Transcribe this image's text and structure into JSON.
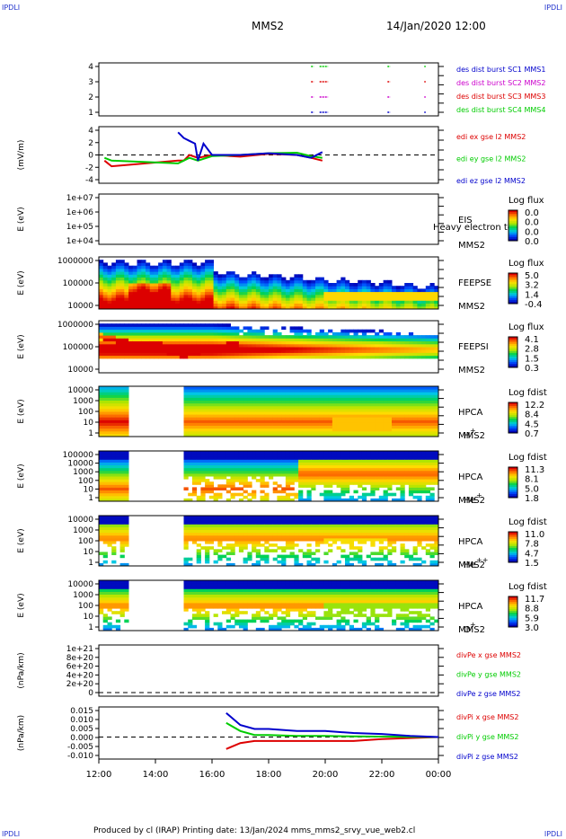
{
  "header": {
    "corner_tl": "IPDLI",
    "corner_tr": "IPDLI",
    "title": "MMS2",
    "date": "14/Jan/2020 12:00"
  },
  "footer": {
    "text": "Produced by cl (IRAP)   Printing date: 13/Jan/2024   mms_mms2_srvy_vue_web2.cl",
    "corner_bl": "IPDLI",
    "corner_br": "IPDLI"
  },
  "time_axis": {
    "ticks": [
      "12:00",
      "14:00",
      "16:00",
      "18:00",
      "20:00",
      "22:00",
      "00:00"
    ],
    "tick_hours": [
      12,
      14,
      16,
      18,
      20,
      22,
      24
    ]
  },
  "colors": {
    "red": "#dd0000",
    "green": "#00cc00",
    "blue": "#0000cc",
    "magenta": "#cc00cc",
    "orange": "#ff8800",
    "yellow": "#ffee00",
    "cyan": "#00ccdd"
  },
  "panels": [
    {
      "id": "burst",
      "type": "scatter",
      "ylabel": "",
      "yticks": [
        "4",
        "3",
        "2",
        "1"
      ],
      "legend": [
        {
          "text": "des dist burst SC1 MMS1",
          "color": "#0000cc"
        },
        {
          "text": "des dist burst SC2 MMS2",
          "color": "#cc00cc"
        },
        {
          "text": "des dist burst SC3 MMS3",
          "color": "#dd0000"
        },
        {
          "text": "des dist burst SC4 MMS4",
          "color": "#00cc00"
        }
      ],
      "series": [
        {
          "level": 4,
          "color": "#00cc00",
          "segments": [
            [
              19.5,
              19.6
            ],
            [
              19.8,
              20.1
            ],
            [
              22.2,
              22.3
            ],
            [
              23.5,
              23.55
            ]
          ]
        },
        {
          "level": 3,
          "color": "#dd0000",
          "segments": [
            [
              19.5,
              19.6
            ],
            [
              19.8,
              20.1
            ],
            [
              22.2,
              22.3
            ],
            [
              23.5,
              23.55
            ]
          ]
        },
        {
          "level": 2,
          "color": "#cc00cc",
          "segments": [
            [
              19.5,
              19.6
            ],
            [
              19.8,
              20.1
            ],
            [
              22.2,
              22.3
            ],
            [
              23.5,
              23.55
            ]
          ]
        },
        {
          "level": 1,
          "color": "#0000cc",
          "segments": [
            [
              19.5,
              19.6
            ],
            [
              19.8,
              20.1
            ],
            [
              22.2,
              22.3
            ],
            [
              23.5,
              23.55
            ]
          ]
        }
      ]
    },
    {
      "id": "edi",
      "type": "line",
      "ylabel": "(mV/m)",
      "yticks": [
        "4",
        "2",
        "0",
        "-2",
        "-4"
      ],
      "legend": [
        {
          "text": "edi ex gse l2 MMS2",
          "color": "#dd0000"
        },
        {
          "text": "edi ey gse l2 MMS2",
          "color": "#00cc00"
        },
        {
          "text": "edi ez gse l2 MMS2",
          "color": "#0000cc"
        }
      ]
    },
    {
      "id": "eis",
      "type": "empty-spectro",
      "ylabel": "E (eV)",
      "yticks": [
        "1e+07",
        "1e+06",
        "1e+05",
        "1e+04"
      ],
      "labels": [
        "EIS",
        "MMS2"
      ],
      "overlay": "Heavy electron to",
      "cbar": {
        "title": "Log flux",
        "ticks": [
          "0.0",
          "0.0",
          "0.0",
          "0.0"
        ]
      }
    },
    {
      "id": "feepse",
      "type": "spectro",
      "ylabel": "E (eV)",
      "yticks": [
        "1000000",
        "100000",
        "10000"
      ],
      "labels": [
        "FEEPSE",
        "MMS2"
      ],
      "cbar": {
        "title": "Log flux",
        "ticks": [
          "5.0",
          "3.2",
          "1.4",
          "-0.4"
        ]
      }
    },
    {
      "id": "feepsi",
      "type": "spectro",
      "ylabel": "E (eV)",
      "yticks": [
        "1000000",
        "100000",
        "10000"
      ],
      "labels": [
        "FEEPSI",
        "MMS2"
      ],
      "cbar": {
        "title": "Log flux",
        "ticks": [
          "4.1",
          "2.8",
          "1.5",
          "0.3"
        ]
      }
    },
    {
      "id": "hpca-h",
      "type": "spectro",
      "ylabel": "E (eV)",
      "yticks": [
        "10000",
        "1000",
        "100",
        "10",
        "1"
      ],
      "labels": [
        "HPCA",
        "MMS2"
      ],
      "species": "H",
      "species_sup": "+",
      "cbar": {
        "title": "Log fdist",
        "ticks": [
          "12.2",
          "8.4",
          "4.5",
          "0.7"
        ]
      }
    },
    {
      "id": "hpca-he",
      "type": "spectro",
      "ylabel": "E (eV)",
      "yticks": [
        "100000",
        "10000",
        "1000",
        "100",
        "10",
        "1"
      ],
      "labels": [
        "HPCA",
        "MMS2"
      ],
      "species": "He",
      "species_sup": "+",
      "cbar": {
        "title": "Log fdist",
        "ticks": [
          "11.3",
          "8.1",
          "5.0",
          "1.8"
        ]
      }
    },
    {
      "id": "hpca-he2",
      "type": "spectro",
      "ylabel": "E (eV)",
      "yticks": [
        "10000",
        "1000",
        "100",
        "10",
        "1"
      ],
      "labels": [
        "HPCA",
        "MMS2"
      ],
      "species": "He",
      "species_sup": "++",
      "cbar": {
        "title": "Log fdist",
        "ticks": [
          "11.0",
          "7.8",
          "4.7",
          "1.5"
        ]
      }
    },
    {
      "id": "hpca-o",
      "type": "spectro",
      "ylabel": "E (eV)",
      "yticks": [
        "10000",
        "1000",
        "100",
        "10",
        "1"
      ],
      "labels": [
        "HPCA",
        "MMS2"
      ],
      "species": "O",
      "species_sup": "+",
      "cbar": {
        "title": "Log fdist",
        "ticks": [
          "11.7",
          "8.8",
          "5.9",
          "3.0"
        ]
      }
    },
    {
      "id": "divpe",
      "type": "empty-line",
      "ylabel": "(nPa/km)",
      "yticks": [
        "1e+21",
        "8e+20",
        "6e+20",
        "4e+20",
        "2e+20",
        "0"
      ],
      "legend": [
        {
          "text": "divPe x gse MMS2",
          "color": "#dd0000"
        },
        {
          "text": "divPe y gse MMS2",
          "color": "#00cc00"
        },
        {
          "text": "divPe z gse MMS2",
          "color": "#0000cc"
        }
      ]
    },
    {
      "id": "divpi",
      "type": "line",
      "ylabel": "(nPa/km)",
      "yticks": [
        "0.015",
        "0.010",
        "0.005",
        "0.000",
        "-0.005",
        "-0.010"
      ],
      "legend": [
        {
          "text": "divPi x gse MMS2",
          "color": "#dd0000"
        },
        {
          "text": "divPi y gse MMS2",
          "color": "#00cc00"
        },
        {
          "text": "divPi z gse MMS2",
          "color": "#0000cc"
        }
      ]
    }
  ],
  "chart_data": {
    "type": "heatmap",
    "x_range_hours": [
      12,
      24
    ],
    "data_gaps_hpca_hours": [
      [
        13.0,
        15.0
      ]
    ],
    "edi": {
      "ylim": [
        -5,
        5
      ],
      "series": [
        {
          "name": "edi ex gse l2 MMS2",
          "x": [
            12.2,
            12.45,
            14.8,
            15.0,
            15.2,
            15.5,
            16.0,
            17.0,
            18.0,
            19.0,
            19.5,
            19.9
          ],
          "y": [
            -1,
            -2,
            -1,
            -1,
            0,
            -0.5,
            0,
            -0.3,
            0.2,
            0,
            -0.5,
            -1
          ]
        },
        {
          "name": "edi ey gse l2 MMS2",
          "x": [
            12.2,
            12.45,
            14.8,
            15.0,
            15.2,
            15.5,
            16.0,
            17.0,
            18.0,
            19.0,
            19.5,
            19.9
          ],
          "y": [
            -0.5,
            -1,
            -1.5,
            -1,
            -0.5,
            -1,
            -0.2,
            0,
            0.3,
            0.4,
            -0.2,
            -0.5
          ]
        },
        {
          "name": "edi ez gse l2 MMS2",
          "x": [
            14.8,
            14.9,
            15.0,
            15.2,
            15.4,
            15.5,
            15.7,
            16.0,
            17.0,
            18.0,
            19.0,
            19.5,
            19.9
          ],
          "y": [
            4,
            3.5,
            3,
            2.5,
            2,
            -1,
            2,
            0,
            0,
            0.3,
            0,
            -0.5,
            0.5
          ]
        }
      ]
    },
    "divpi": {
      "ylim": [
        -0.011,
        0.015
      ],
      "series": [
        {
          "name": "divPi x gse MMS2",
          "x": [
            16.5,
            17,
            17.5,
            18,
            19,
            20,
            21,
            22,
            23,
            24
          ],
          "y": [
            -0.006,
            -0.003,
            -0.002,
            -0.002,
            -0.002,
            -0.002,
            -0.002,
            -0.001,
            -0.0005,
            0
          ]
        },
        {
          "name": "divPi y gse MMS2",
          "x": [
            16.5,
            17,
            17.5,
            18,
            19,
            20,
            21,
            22,
            23,
            24
          ],
          "y": [
            0.007,
            0.003,
            0.001,
            0.001,
            0.0005,
            0.0005,
            0.0003,
            0.0002,
            0.0001,
            0
          ]
        },
        {
          "name": "divPi z gse MMS2",
          "x": [
            16.5,
            17,
            17.5,
            18,
            19,
            20,
            21,
            22,
            23,
            24
          ],
          "y": [
            0.012,
            0.006,
            0.004,
            0.004,
            0.003,
            0.003,
            0.002,
            0.0015,
            0.0005,
            0
          ]
        }
      ]
    }
  }
}
